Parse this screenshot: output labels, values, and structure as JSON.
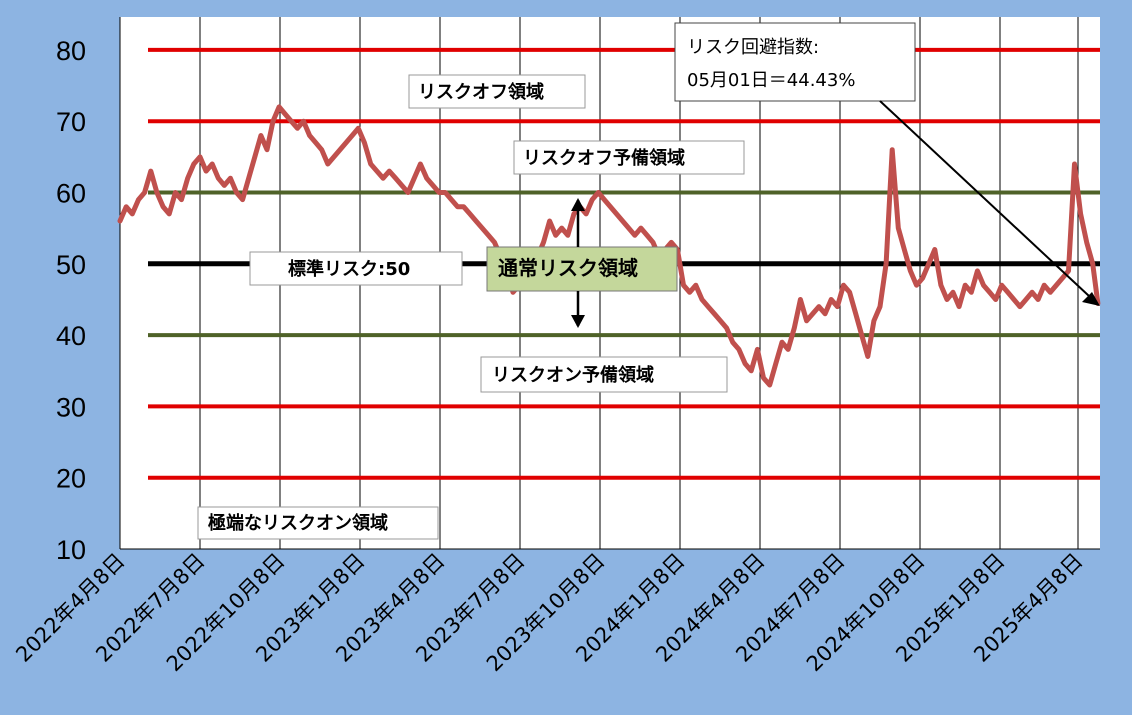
{
  "chart_data": {
    "type": "line",
    "title": "",
    "xlabel": "",
    "ylabel": "",
    "ylim": [
      10,
      85
    ],
    "yticks": [
      10,
      20,
      30,
      40,
      50,
      60,
      70,
      80
    ],
    "xlim": [
      "2022-04-08",
      "2025-05-01"
    ],
    "x_tick_labels": [
      "2022年4月8日",
      "2022年7月8日",
      "2022年10月8日",
      "2023年1月8日",
      "2023年4月8日",
      "2023年7月8日",
      "2023年10月8日",
      "2024年1月8日",
      "2024年4月8日",
      "2024年7月8日",
      "2024年10月8日",
      "2025年1月8日",
      "2025年4月8日"
    ],
    "x_tick_dates": [
      "2022-04-08",
      "2022-07-08",
      "2022-10-08",
      "2023-01-08",
      "2023-04-08",
      "2023-07-08",
      "2023-10-08",
      "2024-01-08",
      "2024-04-08",
      "2024-07-08",
      "2024-10-08",
      "2025-01-08",
      "2025-04-08"
    ],
    "grid": "vertical",
    "reference_lines": [
      {
        "value": 80,
        "color": "#e00000"
      },
      {
        "value": 70,
        "color": "#e00000"
      },
      {
        "value": 60,
        "color": "#4f6228"
      },
      {
        "value": 50,
        "color": "#000000"
      },
      {
        "value": 40,
        "color": "#4f6228"
      },
      {
        "value": 30,
        "color": "#e00000"
      },
      {
        "value": 20,
        "color": "#e00000"
      }
    ],
    "annotations": {
      "risk_off": "リスクオフ領域",
      "risk_off_reserve": "リスクオフ予備領域",
      "standard": "標準リスク:50",
      "normal": "通常リスク領域",
      "risk_on_reserve": "リスクオン予備領域",
      "extreme_risk_on": "極端なリスクオン領域",
      "callout_line1": "リスク回避指数:",
      "callout_line2": "05月01日＝44.43%"
    },
    "series": [
      {
        "color": "#c0504d",
        "points": [
          [
            "2022-04-08",
            56
          ],
          [
            "2022-04-15",
            58
          ],
          [
            "2022-04-22",
            57
          ],
          [
            "2022-04-29",
            59
          ],
          [
            "2022-05-06",
            60
          ],
          [
            "2022-05-13",
            63
          ],
          [
            "2022-05-20",
            60
          ],
          [
            "2022-05-27",
            58
          ],
          [
            "2022-06-03",
            57
          ],
          [
            "2022-06-10",
            60
          ],
          [
            "2022-06-17",
            59
          ],
          [
            "2022-06-24",
            62
          ],
          [
            "2022-07-01",
            64
          ],
          [
            "2022-07-08",
            65
          ],
          [
            "2022-07-15",
            63
          ],
          [
            "2022-07-22",
            64
          ],
          [
            "2022-07-29",
            62
          ],
          [
            "2022-08-05",
            61
          ],
          [
            "2022-08-12",
            62
          ],
          [
            "2022-08-19",
            60
          ],
          [
            "2022-08-26",
            59
          ],
          [
            "2022-09-02",
            62
          ],
          [
            "2022-09-09",
            65
          ],
          [
            "2022-09-16",
            68
          ],
          [
            "2022-09-23",
            66
          ],
          [
            "2022-09-30",
            70
          ],
          [
            "2022-10-07",
            72
          ],
          [
            "2022-10-14",
            71
          ],
          [
            "2022-10-21",
            70
          ],
          [
            "2022-10-28",
            69
          ],
          [
            "2022-11-04",
            70
          ],
          [
            "2022-11-11",
            68
          ],
          [
            "2022-11-18",
            67
          ],
          [
            "2022-11-25",
            66
          ],
          [
            "2022-12-02",
            64
          ],
          [
            "2022-12-09",
            65
          ],
          [
            "2022-12-16",
            66
          ],
          [
            "2022-12-23",
            67
          ],
          [
            "2022-12-30",
            68
          ],
          [
            "2023-01-06",
            69
          ],
          [
            "2023-01-13",
            67
          ],
          [
            "2023-01-20",
            64
          ],
          [
            "2023-01-27",
            63
          ],
          [
            "2023-02-03",
            62
          ],
          [
            "2023-02-10",
            63
          ],
          [
            "2023-02-17",
            62
          ],
          [
            "2023-02-24",
            61
          ],
          [
            "2023-03-03",
            60
          ],
          [
            "2023-03-10",
            62
          ],
          [
            "2023-03-17",
            64
          ],
          [
            "2023-03-24",
            62
          ],
          [
            "2023-03-31",
            61
          ],
          [
            "2023-04-07",
            60
          ],
          [
            "2023-04-14",
            60
          ],
          [
            "2023-04-21",
            59
          ],
          [
            "2023-04-28",
            58
          ],
          [
            "2023-05-05",
            58
          ],
          [
            "2023-05-12",
            57
          ],
          [
            "2023-05-19",
            56
          ],
          [
            "2023-05-26",
            55
          ],
          [
            "2023-06-02",
            54
          ],
          [
            "2023-06-09",
            53
          ],
          [
            "2023-06-16",
            51
          ],
          [
            "2023-06-23",
            49
          ],
          [
            "2023-06-30",
            46
          ],
          [
            "2023-07-07",
            47
          ],
          [
            "2023-07-14",
            50
          ],
          [
            "2023-07-21",
            51
          ],
          [
            "2023-07-28",
            51
          ],
          [
            "2023-08-04",
            53
          ],
          [
            "2023-08-11",
            56
          ],
          [
            "2023-08-18",
            54
          ],
          [
            "2023-08-25",
            55
          ],
          [
            "2023-09-01",
            54
          ],
          [
            "2023-09-08",
            57
          ],
          [
            "2023-09-15",
            58
          ],
          [
            "2023-09-22",
            57
          ],
          [
            "2023-09-29",
            59
          ],
          [
            "2023-10-06",
            60
          ],
          [
            "2023-10-13",
            59
          ],
          [
            "2023-10-20",
            58
          ],
          [
            "2023-10-27",
            57
          ],
          [
            "2023-11-03",
            56
          ],
          [
            "2023-11-10",
            55
          ],
          [
            "2023-11-17",
            54
          ],
          [
            "2023-11-24",
            55
          ],
          [
            "2023-12-01",
            54
          ],
          [
            "2023-12-08",
            53
          ],
          [
            "2023-12-15",
            51
          ],
          [
            "2023-12-22",
            52
          ],
          [
            "2023-12-29",
            53
          ],
          [
            "2024-01-05",
            52
          ],
          [
            "2024-01-12",
            47
          ],
          [
            "2024-01-19",
            46
          ],
          [
            "2024-01-26",
            47
          ],
          [
            "2024-02-02",
            45
          ],
          [
            "2024-02-09",
            44
          ],
          [
            "2024-02-16",
            43
          ],
          [
            "2024-02-23",
            42
          ],
          [
            "2024-03-01",
            41
          ],
          [
            "2024-03-08",
            39
          ],
          [
            "2024-03-15",
            38
          ],
          [
            "2024-03-22",
            36
          ],
          [
            "2024-03-29",
            35
          ],
          [
            "2024-04-05",
            38
          ],
          [
            "2024-04-12",
            34
          ],
          [
            "2024-04-19",
            33
          ],
          [
            "2024-04-26",
            36
          ],
          [
            "2024-05-03",
            39
          ],
          [
            "2024-05-10",
            38
          ],
          [
            "2024-05-17",
            41
          ],
          [
            "2024-05-24",
            45
          ],
          [
            "2024-05-31",
            42
          ],
          [
            "2024-06-07",
            43
          ],
          [
            "2024-06-14",
            44
          ],
          [
            "2024-06-21",
            43
          ],
          [
            "2024-06-28",
            45
          ],
          [
            "2024-07-05",
            44
          ],
          [
            "2024-07-12",
            47
          ],
          [
            "2024-07-19",
            46
          ],
          [
            "2024-07-26",
            43
          ],
          [
            "2024-08-02",
            40
          ],
          [
            "2024-08-09",
            37
          ],
          [
            "2024-08-16",
            42
          ],
          [
            "2024-08-23",
            44
          ],
          [
            "2024-08-30",
            50
          ],
          [
            "2024-09-06",
            66
          ],
          [
            "2024-09-13",
            55
          ],
          [
            "2024-09-20",
            52
          ],
          [
            "2024-09-27",
            49
          ],
          [
            "2024-10-04",
            47
          ],
          [
            "2024-10-11",
            48
          ],
          [
            "2024-10-18",
            50
          ],
          [
            "2024-10-25",
            52
          ],
          [
            "2024-11-01",
            47
          ],
          [
            "2024-11-08",
            45
          ],
          [
            "2024-11-15",
            46
          ],
          [
            "2024-11-22",
            44
          ],
          [
            "2024-11-29",
            47
          ],
          [
            "2024-12-06",
            46
          ],
          [
            "2024-12-13",
            49
          ],
          [
            "2024-12-20",
            47
          ],
          [
            "2024-12-27",
            46
          ],
          [
            "2025-01-03",
            45
          ],
          [
            "2025-01-10",
            47
          ],
          [
            "2025-01-17",
            46
          ],
          [
            "2025-01-24",
            45
          ],
          [
            "2025-01-31",
            44
          ],
          [
            "2025-02-07",
            45
          ],
          [
            "2025-02-14",
            46
          ],
          [
            "2025-02-21",
            45
          ],
          [
            "2025-02-28",
            47
          ],
          [
            "2025-03-07",
            46
          ],
          [
            "2025-03-14",
            47
          ],
          [
            "2025-03-21",
            48
          ],
          [
            "2025-03-28",
            49
          ],
          [
            "2025-04-04",
            64
          ],
          [
            "2025-04-11",
            57
          ],
          [
            "2025-04-18",
            53
          ],
          [
            "2025-04-25",
            50
          ],
          [
            "2025-05-01",
            44.43
          ]
        ]
      }
    ]
  }
}
